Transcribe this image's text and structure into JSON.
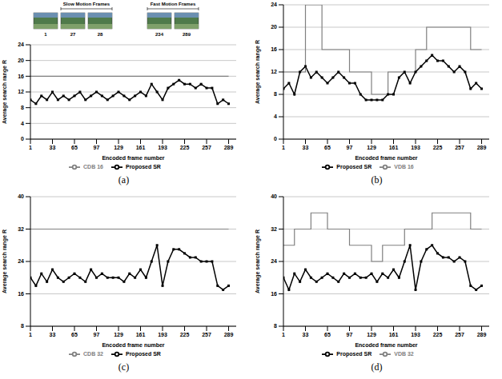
{
  "inset_images": {
    "groups": [
      {
        "frames": [
          1
        ]
      },
      {
        "title": "Slow Motion Frames",
        "frames": [
          27,
          28
        ]
      },
      {
        "title": "Fast Motion Frames",
        "frames": [
          234,
          289
        ]
      }
    ]
  },
  "chart_data": [
    {
      "caption": "(a)",
      "type": "line",
      "xlabel": "Encoded frame number",
      "ylabel": "Average search range R",
      "x": [
        1,
        9,
        17,
        25,
        33,
        41,
        49,
        57,
        65,
        73,
        81,
        89,
        97,
        105,
        113,
        121,
        129,
        137,
        145,
        153,
        161,
        169,
        177,
        185,
        193,
        201,
        209,
        217,
        225,
        233,
        241,
        249,
        257,
        265,
        273,
        281,
        289
      ],
      "xlim": [
        1,
        300
      ],
      "xticks": [
        1,
        33,
        65,
        97,
        129,
        161,
        193,
        225,
        257,
        289
      ],
      "ylim": [
        0,
        24
      ],
      "yticks": [
        0,
        4,
        8,
        12,
        16,
        20,
        24
      ],
      "grid": true,
      "legend": "bottom",
      "series": [
        {
          "name": "Proposed SR",
          "color": "#000000",
          "type": "line",
          "marker": "square",
          "values": [
            10,
            9,
            11,
            10,
            12,
            10,
            11,
            10,
            11,
            12,
            10,
            11,
            12,
            11,
            10,
            11,
            12,
            11,
            10,
            11,
            12,
            11,
            14,
            12,
            10,
            13,
            14,
            15,
            14,
            14,
            13,
            14,
            13,
            13,
            9,
            10,
            9
          ]
        },
        {
          "name": "CDB 16",
          "color": "#808080",
          "type": "line",
          "marker": "none",
          "values": [
            16,
            16,
            16,
            16,
            16,
            16,
            16,
            16,
            16,
            16,
            16,
            16,
            16,
            16,
            16,
            16,
            16,
            16,
            16,
            16,
            16,
            16,
            16,
            16,
            16,
            16,
            16,
            16,
            16,
            16,
            16,
            16,
            16,
            16,
            16,
            16,
            16
          ]
        }
      ]
    },
    {
      "caption": "(b)",
      "type": "line",
      "xlabel": "Encoded frame number",
      "ylabel": "Average search range R",
      "x": [
        1,
        9,
        17,
        25,
        33,
        41,
        49,
        57,
        65,
        73,
        81,
        89,
        97,
        105,
        113,
        121,
        129,
        137,
        145,
        153,
        161,
        169,
        177,
        185,
        193,
        201,
        209,
        217,
        225,
        233,
        241,
        249,
        257,
        265,
        273,
        281,
        289
      ],
      "xlim": [
        1,
        300
      ],
      "xticks": [
        1,
        33,
        65,
        97,
        129,
        161,
        193,
        225,
        257,
        289
      ],
      "ylim": [
        0,
        24
      ],
      "yticks": [
        0,
        4,
        8,
        12,
        16,
        20,
        24
      ],
      "grid": true,
      "legend": "bottom",
      "series": [
        {
          "name": "Proposed SR",
          "color": "#000000",
          "type": "line",
          "marker": "square",
          "values": [
            9,
            10,
            8,
            12,
            13,
            11,
            12,
            11,
            10,
            11,
            12,
            11,
            10,
            10,
            8,
            7,
            7,
            7,
            7,
            8,
            8,
            11,
            12,
            10,
            12,
            13,
            14,
            15,
            14,
            14,
            13,
            12,
            13,
            12,
            9,
            10,
            9
          ]
        },
        {
          "name": "VDB 16",
          "color": "#808080",
          "type": "step",
          "marker": "none",
          "values": [
            12,
            12,
            12,
            12,
            24,
            24,
            24,
            16,
            16,
            16,
            16,
            16,
            12,
            12,
            12,
            12,
            8,
            8,
            8,
            12,
            12,
            12,
            12,
            12,
            16,
            16,
            20,
            20,
            20,
            20,
            20,
            20,
            20,
            20,
            16,
            16,
            16
          ]
        }
      ]
    },
    {
      "caption": "(c)",
      "type": "line",
      "xlabel": "Encoded frame number",
      "ylabel": "Average search range R",
      "x": [
        1,
        9,
        17,
        25,
        33,
        41,
        49,
        57,
        65,
        73,
        81,
        89,
        97,
        105,
        113,
        121,
        129,
        137,
        145,
        153,
        161,
        169,
        177,
        185,
        193,
        201,
        209,
        217,
        225,
        233,
        241,
        249,
        257,
        265,
        273,
        281,
        289
      ],
      "xlim": [
        1,
        300
      ],
      "xticks": [
        1,
        33,
        65,
        97,
        129,
        161,
        193,
        225,
        257,
        289
      ],
      "ylim": [
        8,
        40
      ],
      "yticks": [
        8,
        16,
        24,
        32,
        40
      ],
      "grid": true,
      "legend": "bottom",
      "series": [
        {
          "name": "Proposed SR",
          "color": "#000000",
          "type": "line",
          "marker": "square",
          "values": [
            20,
            18,
            21,
            19,
            22,
            20,
            19,
            20,
            21,
            20,
            19,
            22,
            20,
            21,
            20,
            20,
            20,
            19,
            21,
            20,
            22,
            20,
            24,
            28,
            18,
            24,
            27,
            27,
            26,
            25,
            25,
            24,
            24,
            24,
            18,
            17,
            18
          ]
        },
        {
          "name": "CDB 32",
          "color": "#808080",
          "type": "line",
          "marker": "none",
          "values": [
            32,
            32,
            32,
            32,
            32,
            32,
            32,
            32,
            32,
            32,
            32,
            32,
            32,
            32,
            32,
            32,
            32,
            32,
            32,
            32,
            32,
            32,
            32,
            32,
            32,
            32,
            32,
            32,
            32,
            32,
            32,
            32,
            32,
            32,
            32,
            32,
            32
          ]
        }
      ]
    },
    {
      "caption": "(d)",
      "type": "line",
      "xlabel": "Encoded frame number",
      "ylabel": "Average search range R",
      "x": [
        1,
        9,
        17,
        25,
        33,
        41,
        49,
        57,
        65,
        73,
        81,
        89,
        97,
        105,
        113,
        121,
        129,
        137,
        145,
        153,
        161,
        169,
        177,
        185,
        193,
        201,
        209,
        217,
        225,
        233,
        241,
        249,
        257,
        265,
        273,
        281,
        289
      ],
      "xlim": [
        1,
        300
      ],
      "xticks": [
        1,
        33,
        65,
        97,
        129,
        161,
        193,
        225,
        257,
        289
      ],
      "ylim": [
        8,
        40
      ],
      "yticks": [
        8,
        16,
        24,
        32,
        40
      ],
      "grid": true,
      "legend": "bottom",
      "series": [
        {
          "name": "Proposed SR",
          "color": "#000000",
          "type": "line",
          "marker": "square",
          "values": [
            20,
            17,
            21,
            19,
            22,
            20,
            19,
            20,
            21,
            20,
            19,
            21,
            20,
            21,
            20,
            20,
            21,
            19,
            21,
            20,
            22,
            20,
            24,
            28,
            17,
            24,
            27,
            28,
            26,
            25,
            25,
            24,
            25,
            24,
            18,
            17,
            18
          ]
        },
        {
          "name": "VDB 32",
          "color": "#808080",
          "type": "step",
          "marker": "none",
          "values": [
            28,
            28,
            32,
            32,
            32,
            36,
            36,
            36,
            32,
            32,
            32,
            32,
            28,
            28,
            28,
            28,
            24,
            24,
            28,
            28,
            28,
            28,
            32,
            32,
            32,
            32,
            32,
            36,
            36,
            36,
            36,
            36,
            36,
            36,
            32,
            32,
            32
          ]
        }
      ]
    }
  ]
}
